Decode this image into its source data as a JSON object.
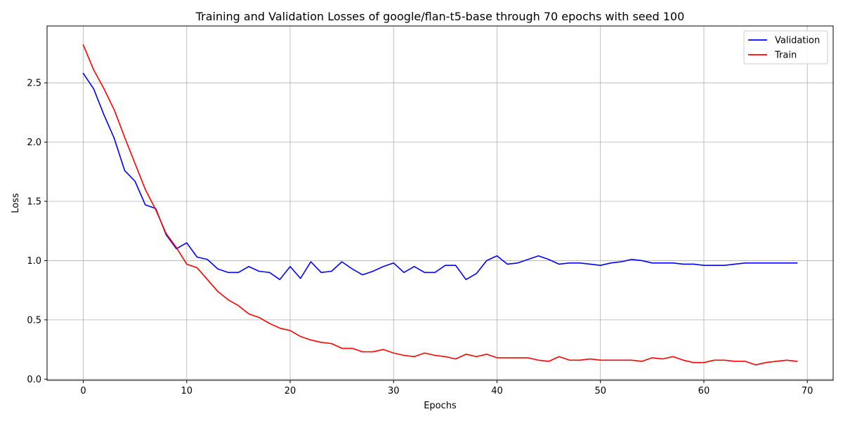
{
  "chart_data": {
    "type": "line",
    "title": "Training and Validation Losses of google/flan-t5-base through 70 epochs with seed 100",
    "xlabel": "Epochs",
    "ylabel": "Loss",
    "xlim": [
      -3.5,
      72.5
    ],
    "ylim": [
      -0.01,
      2.98
    ],
    "xticks": [
      0,
      10,
      20,
      30,
      40,
      50,
      60,
      70
    ],
    "xtick_labels": [
      "0",
      "10",
      "20",
      "30",
      "40",
      "50",
      "60",
      "70"
    ],
    "yticks": [
      0.0,
      0.5,
      1.0,
      1.5,
      2.0,
      2.5
    ],
    "ytick_labels": [
      "0.0",
      "0.5",
      "1.0",
      "1.5",
      "2.0",
      "2.5"
    ],
    "grid": true,
    "legend_position": "top-right",
    "x": [
      0,
      1,
      2,
      3,
      4,
      5,
      6,
      7,
      8,
      9,
      10,
      11,
      12,
      13,
      14,
      15,
      16,
      17,
      18,
      19,
      20,
      21,
      22,
      23,
      24,
      25,
      26,
      27,
      28,
      29,
      30,
      31,
      32,
      33,
      34,
      35,
      36,
      37,
      38,
      39,
      40,
      41,
      42,
      43,
      44,
      45,
      46,
      47,
      48,
      49,
      50,
      51,
      52,
      53,
      54,
      55,
      56,
      57,
      58,
      59,
      60,
      61,
      62,
      63,
      64,
      65,
      66,
      67,
      68,
      69
    ],
    "series": [
      {
        "name": "Validation",
        "color": "#0000ff",
        "values": [
          2.58,
          2.45,
          2.23,
          2.03,
          1.76,
          1.67,
          1.47,
          1.44,
          1.22,
          1.1,
          1.15,
          1.03,
          1.01,
          0.93,
          0.9,
          0.9,
          0.95,
          0.91,
          0.9,
          0.84,
          0.95,
          0.85,
          0.99,
          0.9,
          0.91,
          0.99,
          0.93,
          0.88,
          0.91,
          0.95,
          0.98,
          0.9,
          0.95,
          0.9,
          0.9,
          0.96,
          0.96,
          0.84,
          0.89,
          1.0,
          1.04,
          0.97,
          0.98,
          1.01,
          1.04,
          1.01,
          0.97,
          0.98,
          0.98,
          0.97,
          0.96,
          0.98,
          0.99,
          1.01,
          1.0,
          0.98,
          0.98,
          0.98,
          0.97,
          0.97,
          0.96,
          0.96,
          0.96,
          0.97,
          0.98,
          0.98,
          0.98,
          0.98,
          0.98,
          0.98
        ]
      },
      {
        "name": "Train",
        "color": "#ff0000",
        "values": [
          2.82,
          2.61,
          2.45,
          2.27,
          2.04,
          1.82,
          1.6,
          1.43,
          1.23,
          1.11,
          0.97,
          0.94,
          0.84,
          0.74,
          0.67,
          0.62,
          0.55,
          0.52,
          0.47,
          0.43,
          0.41,
          0.36,
          0.33,
          0.31,
          0.3,
          0.26,
          0.26,
          0.23,
          0.23,
          0.25,
          0.22,
          0.2,
          0.19,
          0.22,
          0.2,
          0.19,
          0.17,
          0.21,
          0.19,
          0.21,
          0.18,
          0.18,
          0.18,
          0.18,
          0.16,
          0.15,
          0.19,
          0.16,
          0.16,
          0.17,
          0.16,
          0.16,
          0.16,
          0.16,
          0.15,
          0.18,
          0.17,
          0.19,
          0.16,
          0.14,
          0.14,
          0.16,
          0.16,
          0.15,
          0.15,
          0.12,
          0.14,
          0.15,
          0.16,
          0.15
        ]
      }
    ]
  }
}
